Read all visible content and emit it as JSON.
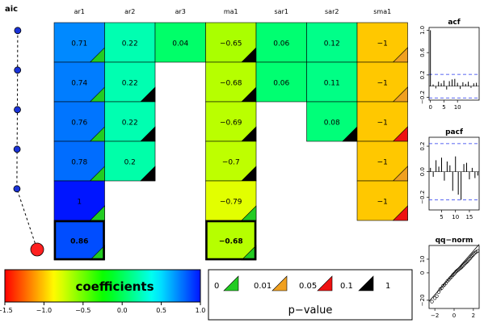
{
  "chart_data": {
    "type": "heatmap",
    "aic_label": "aic",
    "columns": [
      "ar1",
      "ar2",
      "ar3",
      "ma1",
      "sar1",
      "sar2",
      "sma1"
    ],
    "models": [
      {
        "cells": [
          "0.71",
          "0.22",
          "0.04",
          "−0.65",
          "0.06",
          "0.12",
          "−1"
        ],
        "values": [
          0.71,
          0.22,
          0.04,
          -0.65,
          0.06,
          0.12,
          -1
        ],
        "pclass": [
          0,
          null,
          null,
          3,
          null,
          null,
          1
        ]
      },
      {
        "cells": [
          "0.74",
          "0.22",
          "",
          "−0.68",
          "0.06",
          "0.11",
          "−1"
        ],
        "values": [
          0.74,
          0.22,
          null,
          -0.68,
          0.06,
          0.11,
          -1
        ],
        "pclass": [
          0,
          3,
          null,
          3,
          null,
          null,
          1
        ]
      },
      {
        "cells": [
          "0.76",
          "0.22",
          "",
          "−0.69",
          "",
          "0.08",
          "−1"
        ],
        "values": [
          0.76,
          0.22,
          null,
          -0.69,
          null,
          0.08,
          -1
        ],
        "pclass": [
          0,
          3,
          null,
          3,
          null,
          3,
          2
        ]
      },
      {
        "cells": [
          "0.78",
          "0.2",
          "",
          "−0.7",
          "",
          "",
          "−1"
        ],
        "values": [
          0.78,
          0.2,
          null,
          -0.7,
          null,
          null,
          -1
        ],
        "pclass": [
          0,
          3,
          null,
          3,
          null,
          null,
          1
        ]
      },
      {
        "cells": [
          "1",
          "",
          "",
          "−0.79",
          "",
          "",
          "−1"
        ],
        "values": [
          1,
          null,
          null,
          -0.79,
          null,
          null,
          -1
        ],
        "pclass": [
          0,
          null,
          null,
          0,
          null,
          null,
          2
        ]
      },
      {
        "cells": [
          "0.86",
          "",
          "",
          "−0.68",
          "",
          "",
          ""
        ],
        "values": [
          0.86,
          null,
          null,
          -0.68,
          null,
          null,
          null
        ],
        "pclass": [
          0,
          null,
          null,
          0,
          null,
          null,
          null
        ]
      }
    ],
    "selected_row": 5,
    "aic_relative": [
      0.05,
      0.15,
      0.25,
      0.45,
      0.55,
      1.0
    ],
    "colorbar": {
      "label": "coefficients",
      "ticks": [
        "−1.5",
        "−1.0",
        "−0.5",
        "0.0",
        "0.5",
        "1.0"
      ],
      "range": [
        -1.5,
        1.0
      ]
    },
    "pvalue_legend": {
      "label": "p−value",
      "breaks": [
        "0",
        "0.01",
        "0.05",
        "0.1",
        "1"
      ],
      "colors": [
        "#22cc22",
        "#f0a020",
        "#ee1111",
        "#000000"
      ]
    },
    "acf": {
      "title": "acf",
      "y_ticks": [
        "−0.2",
        "0.2",
        "0.6",
        "1.0"
      ],
      "x_ticks": [
        "0",
        "5",
        "10"
      ],
      "ylim": [
        -0.25,
        1.05
      ],
      "xlim": [
        -0.5,
        18
      ],
      "conf_band": 0.21,
      "lags": [
        0,
        1,
        2,
        3,
        4,
        5,
        6,
        7,
        8,
        9,
        10,
        11,
        12,
        13,
        14,
        15,
        16,
        17
      ],
      "values": [
        1.0,
        0.03,
        -0.04,
        0.08,
        0.05,
        0.1,
        -0.06,
        0.09,
        0.12,
        0.13,
        0.06,
        -0.05,
        0.07,
        0.04,
        0.08,
        -0.03,
        0.05,
        0.06
      ]
    },
    "pacf": {
      "title": "pacf",
      "y_ticks": [
        "−0.2",
        "0.0",
        "0.2"
      ],
      "x_ticks": [
        "5",
        "10",
        "15"
      ],
      "ylim": [
        -0.3,
        0.27
      ],
      "xlim": [
        0.5,
        18.5
      ],
      "conf_band": 0.22,
      "lags": [
        1,
        2,
        3,
        4,
        5,
        6,
        7,
        8,
        9,
        10,
        11,
        12,
        13,
        14,
        15,
        16,
        17,
        18
      ],
      "values": [
        0.03,
        -0.04,
        0.09,
        0.04,
        0.11,
        -0.07,
        0.08,
        0.05,
        -0.15,
        0.12,
        -0.18,
        -0.22,
        0.06,
        0.07,
        -0.06,
        0.03,
        -0.05,
        -0.03
      ]
    },
    "qq": {
      "title": "qq−norm",
      "y_ticks": [
        "−20",
        "0",
        "10"
      ],
      "x_ticks": [
        "−2",
        "0",
        "2"
      ],
      "xlim": [
        -2.6,
        2.6
      ],
      "ylim": [
        -26,
        20
      ],
      "line": [
        [
          -2.6,
          -20.8
        ],
        [
          2.6,
          20.8
        ]
      ],
      "points": [
        [
          -2.3,
          -21
        ],
        [
          -2.0,
          -18.5
        ],
        [
          -1.8,
          -17
        ],
        [
          -1.6,
          -14
        ],
        [
          -1.45,
          -12
        ],
        [
          -1.3,
          -11.2
        ],
        [
          -1.15,
          -9.5
        ],
        [
          -1.0,
          -8.7
        ],
        [
          -0.85,
          -7.5
        ],
        [
          -0.7,
          -6.0
        ],
        [
          -0.55,
          -5.0
        ],
        [
          -0.4,
          -3.8
        ],
        [
          -0.28,
          -2.9
        ],
        [
          -0.15,
          -1.8
        ],
        [
          -0.05,
          -1.0
        ],
        [
          0.05,
          -0.4
        ],
        [
          0.15,
          0.5
        ],
        [
          0.25,
          1.2
        ],
        [
          0.35,
          1.8
        ],
        [
          0.45,
          2.3
        ],
        [
          0.55,
          3.0
        ],
        [
          0.65,
          3.5
        ],
        [
          0.75,
          4.0
        ],
        [
          0.85,
          4.8
        ],
        [
          0.95,
          5.5
        ],
        [
          1.05,
          6.2
        ],
        [
          1.15,
          7.0
        ],
        [
          1.25,
          7.6
        ],
        [
          1.35,
          8.3
        ],
        [
          1.45,
          9.0
        ],
        [
          1.55,
          9.8
        ],
        [
          1.65,
          10.6
        ],
        [
          1.75,
          11.5
        ],
        [
          1.85,
          12.3
        ],
        [
          1.95,
          13.0
        ],
        [
          2.05,
          13.8
        ],
        [
          2.15,
          14.5
        ],
        [
          2.3,
          15.2
        ],
        [
          2.45,
          16.0
        ]
      ]
    }
  }
}
